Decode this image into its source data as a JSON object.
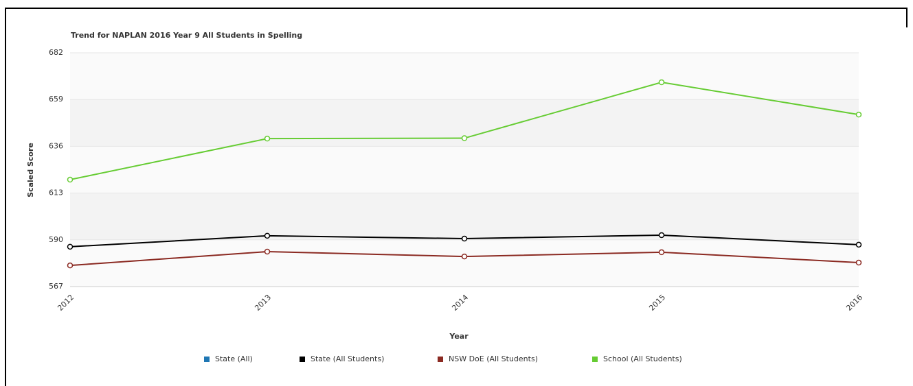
{
  "chart_data": {
    "type": "line",
    "title": "Trend for NAPLAN 2016 Year 9 All Students in Spelling",
    "x_label": "Year",
    "y_label": "Scaled Score",
    "categories": [
      "2012",
      "2013",
      "2014",
      "2015",
      "2016"
    ],
    "series": [
      {
        "name": "State (All)",
        "color": "#1f77b4",
        "values": [
          null,
          null,
          null,
          null,
          null
        ]
      },
      {
        "name": "State (All Students)",
        "color": "#000000",
        "values": [
          586.6,
          592,
          590.6,
          592.3,
          587.6
        ]
      },
      {
        "name": "NSW DoE (All Students)",
        "color": "#8b2a22",
        "values": [
          577.4,
          584.2,
          581.8,
          583.9,
          578.8
        ]
      },
      {
        "name": "School (All Students)",
        "color": "#66cc33",
        "values": [
          619.6,
          639.8,
          640,
          667.5,
          651.6
        ]
      }
    ],
    "ylim": [
      567,
      682
    ],
    "yticks": [
      567,
      590,
      613,
      636,
      659,
      682
    ],
    "grid": true,
    "legend": "bottom"
  }
}
